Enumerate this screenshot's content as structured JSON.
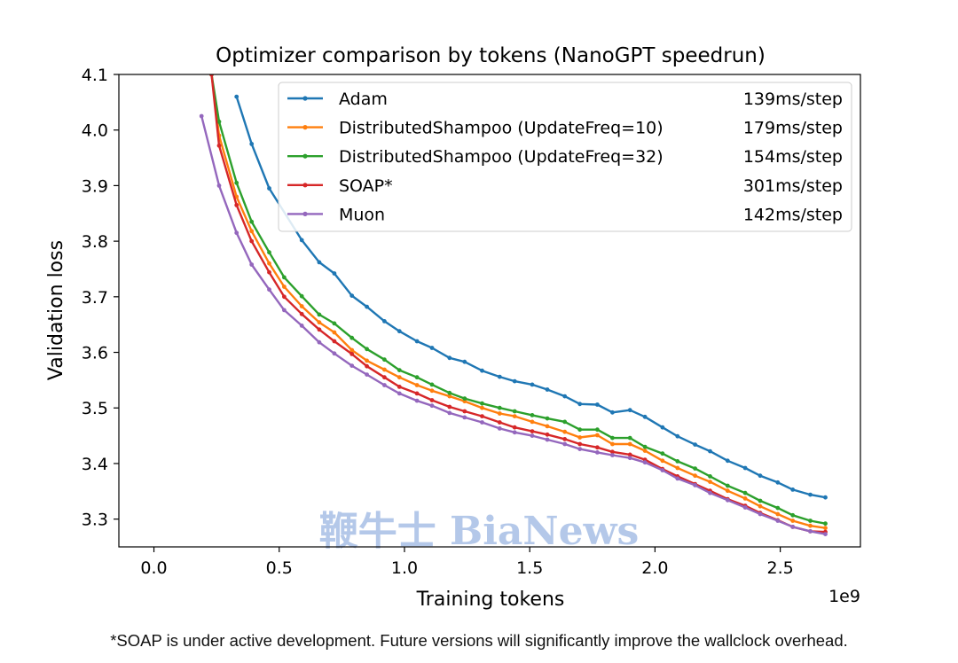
{
  "chart_data": {
    "type": "line",
    "title": "Optimizer comparison by tokens (NanoGPT speedrun)",
    "xlabel": "Training tokens",
    "ylabel": "Validation loss",
    "x_scale_label": "1e9",
    "xlim": [
      -0.14,
      2.82
    ],
    "ylim": [
      3.25,
      4.1
    ],
    "x_ticks": [
      0.0,
      0.5,
      1.0,
      1.5,
      2.0,
      2.5
    ],
    "x_tick_labels": [
      "0.0",
      "0.5",
      "1.0",
      "1.5",
      "2.0",
      "2.5"
    ],
    "y_ticks": [
      3.3,
      3.4,
      3.5,
      3.6,
      3.7,
      3.8,
      3.9,
      4.0,
      4.1
    ],
    "y_tick_labels": [
      "3.3",
      "3.4",
      "3.5",
      "3.6",
      "3.7",
      "3.8",
      "3.9",
      "4.0",
      "4.1"
    ],
    "grid": false,
    "legend_position": "top-right",
    "series": [
      {
        "name": "Adam",
        "speed": "139ms/step",
        "color": "#1f77b4",
        "x": [
          0.33,
          0.39,
          0.46,
          0.59,
          0.66,
          0.72,
          0.79,
          0.85,
          0.92,
          0.98,
          1.05,
          1.11,
          1.18,
          1.24,
          1.31,
          1.38,
          1.44,
          1.51,
          1.57,
          1.64,
          1.7,
          1.77,
          1.83,
          1.9,
          1.96,
          2.03,
          2.09,
          2.16,
          2.22,
          2.29,
          2.36,
          2.42,
          2.49,
          2.55,
          2.62,
          2.68
        ],
        "y": [
          4.06,
          3.975,
          3.895,
          3.802,
          3.762,
          3.742,
          3.702,
          3.682,
          3.656,
          3.638,
          3.62,
          3.608,
          3.59,
          3.583,
          3.567,
          3.556,
          3.548,
          3.542,
          3.533,
          3.521,
          3.507,
          3.506,
          3.492,
          3.496,
          3.484,
          3.465,
          3.449,
          3.434,
          3.422,
          3.405,
          3.392,
          3.378,
          3.366,
          3.353,
          3.344,
          3.339
        ]
      },
      {
        "name": "DistributedShampoo (UpdateFreq=10)",
        "speed": "179ms/step",
        "color": "#ff7f0e",
        "x": [
          0.23,
          0.26,
          0.33,
          0.39,
          0.46,
          0.52,
          0.59,
          0.66,
          0.72,
          0.79,
          0.85,
          0.92,
          0.98,
          1.05,
          1.11,
          1.18,
          1.24,
          1.31,
          1.38,
          1.44,
          1.51,
          1.57,
          1.64,
          1.7,
          1.77,
          1.83,
          1.9,
          1.96,
          2.03,
          2.09,
          2.16,
          2.22,
          2.29,
          2.36,
          2.42,
          2.49,
          2.55,
          2.62,
          2.68
        ],
        "y": [
          4.1,
          3.99,
          3.88,
          3.818,
          3.76,
          3.718,
          3.683,
          3.654,
          3.636,
          3.604,
          3.585,
          3.569,
          3.555,
          3.541,
          3.531,
          3.521,
          3.512,
          3.5,
          3.49,
          3.485,
          3.475,
          3.467,
          3.457,
          3.447,
          3.451,
          3.435,
          3.435,
          3.423,
          3.405,
          3.392,
          3.378,
          3.367,
          3.351,
          3.337,
          3.323,
          3.309,
          3.297,
          3.288,
          3.284
        ]
      },
      {
        "name": "DistributedShampoo (UpdateFreq=32)",
        "speed": "154ms/step",
        "color": "#2ca02c",
        "x": [
          0.23,
          0.26,
          0.33,
          0.39,
          0.46,
          0.52,
          0.59,
          0.66,
          0.72,
          0.79,
          0.85,
          0.92,
          0.98,
          1.05,
          1.11,
          1.18,
          1.24,
          1.31,
          1.38,
          1.44,
          1.51,
          1.57,
          1.64,
          1.7,
          1.77,
          1.83,
          1.9,
          1.96,
          2.03,
          2.09,
          2.16,
          2.22,
          2.29,
          2.36,
          2.42,
          2.49,
          2.55,
          2.62,
          2.68
        ],
        "y": [
          4.1,
          4.015,
          3.905,
          3.835,
          3.78,
          3.735,
          3.701,
          3.668,
          3.652,
          3.626,
          3.606,
          3.587,
          3.568,
          3.555,
          3.542,
          3.527,
          3.517,
          3.508,
          3.5,
          3.494,
          3.487,
          3.481,
          3.475,
          3.461,
          3.461,
          3.446,
          3.446,
          3.43,
          3.418,
          3.404,
          3.391,
          3.377,
          3.36,
          3.347,
          3.333,
          3.32,
          3.307,
          3.297,
          3.292
        ]
      },
      {
        "name": "SOAP*",
        "speed": "301ms/step",
        "color": "#d62728",
        "x": [
          0.23,
          0.26,
          0.33,
          0.39,
          0.46,
          0.52,
          0.59,
          0.66,
          0.72,
          0.79,
          0.85,
          0.92,
          0.98,
          1.05,
          1.11,
          1.18,
          1.24,
          1.31,
          1.38,
          1.44,
          1.51,
          1.57,
          1.64,
          1.7,
          1.77,
          1.83,
          1.9,
          1.96,
          2.03,
          2.09,
          2.16,
          2.22,
          2.29,
          2.36,
          2.42,
          2.49,
          2.55,
          2.62,
          2.68
        ],
        "y": [
          4.1,
          3.972,
          3.865,
          3.8,
          3.744,
          3.7,
          3.669,
          3.641,
          3.62,
          3.597,
          3.575,
          3.555,
          3.538,
          3.526,
          3.514,
          3.502,
          3.494,
          3.485,
          3.474,
          3.465,
          3.458,
          3.452,
          3.444,
          3.435,
          3.429,
          3.421,
          3.416,
          3.407,
          3.39,
          3.377,
          3.363,
          3.351,
          3.336,
          3.324,
          3.311,
          3.298,
          3.286,
          3.278,
          3.277
        ]
      },
      {
        "name": "Muon",
        "speed": "142ms/step",
        "color": "#9467bd",
        "x": [
          0.19,
          0.26,
          0.33,
          0.39,
          0.46,
          0.52,
          0.59,
          0.66,
          0.72,
          0.79,
          0.85,
          0.92,
          0.98,
          1.05,
          1.11,
          1.18,
          1.24,
          1.31,
          1.38,
          1.44,
          1.51,
          1.57,
          1.64,
          1.7,
          1.77,
          1.83,
          1.9,
          1.96,
          2.03,
          2.09,
          2.16,
          2.22,
          2.29,
          2.36,
          2.42,
          2.49,
          2.55,
          2.62,
          2.68
        ],
        "y": [
          4.025,
          3.9,
          3.815,
          3.758,
          3.713,
          3.676,
          3.648,
          3.618,
          3.598,
          3.576,
          3.56,
          3.541,
          3.526,
          3.513,
          3.504,
          3.491,
          3.483,
          3.474,
          3.463,
          3.456,
          3.45,
          3.443,
          3.435,
          3.426,
          3.42,
          3.415,
          3.41,
          3.402,
          3.388,
          3.373,
          3.361,
          3.347,
          3.334,
          3.321,
          3.309,
          3.297,
          3.286,
          3.278,
          3.273
        ]
      }
    ]
  },
  "footnote": "*SOAP is under active development. Future versions will significantly improve the wallclock overhead.",
  "watermark": "鞭牛士 BiaNews"
}
